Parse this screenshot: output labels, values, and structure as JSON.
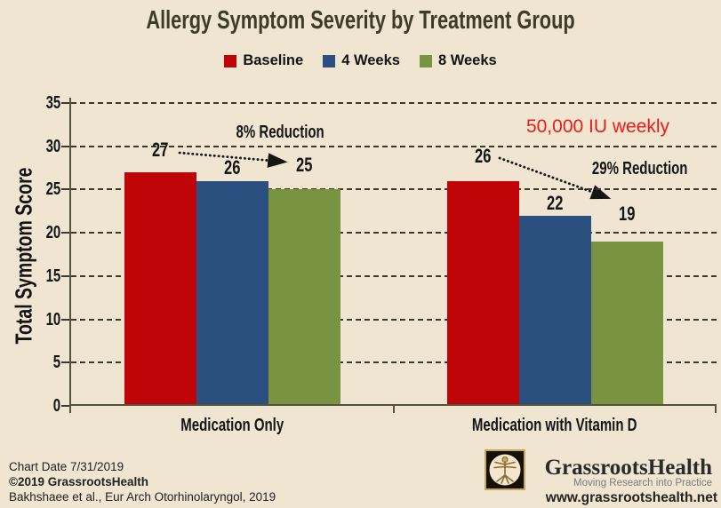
{
  "chart_data": {
    "type": "bar",
    "title": "Allergy Symptom Severity by Treatment Group",
    "categories": [
      "Medication Only",
      "Medication with Vitamin D"
    ],
    "series": [
      {
        "name": "Baseline",
        "color": "#C00509",
        "values": [
          27,
          26
        ]
      },
      {
        "name": "4 Weeks",
        "color": "#2B4F7E",
        "values": [
          26,
          22
        ]
      },
      {
        "name": "8 Weeks",
        "color": "#789441",
        "values": [
          25,
          19
        ]
      }
    ],
    "xlabel": "",
    "ylabel": "Total Symptom Score",
    "ylim": [
      0,
      35
    ],
    "yticks": [
      0,
      5,
      10,
      15,
      20,
      25,
      30,
      35
    ],
    "grid": "dashed-horizontal",
    "legend_position": "top",
    "data_labels": true,
    "annotations": [
      "8% Reduction",
      "29% Reduction",
      "50,000 IU weekly"
    ]
  },
  "footer": {
    "chart_date": "Chart Date 7/31/2019",
    "copyright": "©2019 GrassrootsHealth",
    "citation": "Bakhshaee et al., Eur Arch Otorhinolaryngol, 2019"
  },
  "logo": {
    "name": "GrassrootsHealth",
    "tagline": "Moving Research into Practice",
    "website": "www.grassrootshealth.net"
  },
  "colors": {
    "background": "#EFE5D1",
    "title_text": "#3E3B28",
    "axis": "#56533C",
    "annotation_red": "#EC1B15"
  }
}
